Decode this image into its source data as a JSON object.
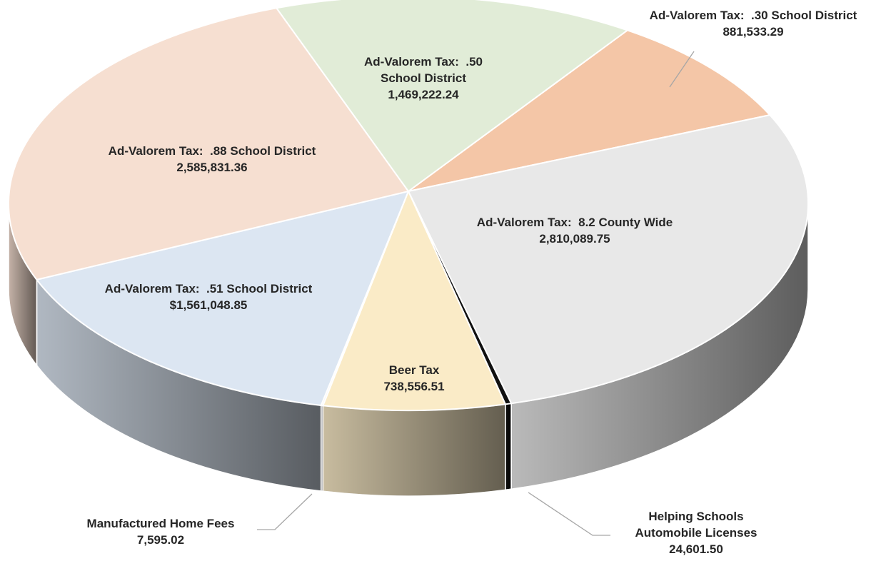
{
  "chart_data": {
    "type": "pie3d",
    "categories": [
      "Ad-Valorem Tax:  .30 School District",
      "Ad-Valorem Tax:  8.2 County Wide",
      "Helping Schools Automobile Licenses",
      "Beer Tax",
      "Manufactured Home Fees",
      "Ad-Valorem Tax:  .51 School District",
      "Ad-Valorem Tax:  .88 School District",
      "Ad-Valorem Tax:  .50 School District"
    ],
    "values": [
      881533.29,
      2810089.75,
      24601.5,
      738556.51,
      7595.02,
      1561048.85,
      2585831.36,
      1469222.24
    ],
    "value_labels": [
      "881,533.29",
      "2,810,089.75",
      "24,601.50",
      "738,556.51",
      "7,595.02",
      "$1,561,048.85",
      "2,585,831.36",
      "1,469,222.24"
    ],
    "colors": [
      "#f4c6a7",
      "#e8e8e8",
      "#111111",
      "#faebc7",
      "#eeeeee",
      "#dce6f2",
      "#f6dfd1",
      "#e1ecd7"
    ]
  }
}
